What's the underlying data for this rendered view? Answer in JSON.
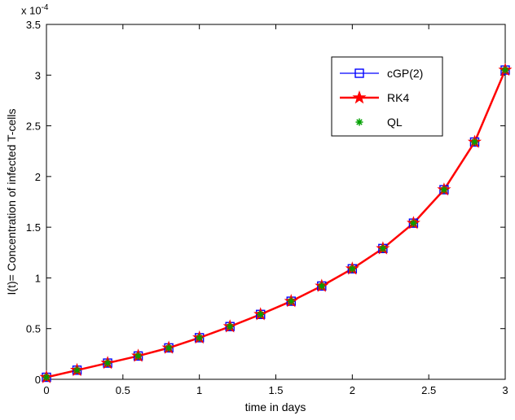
{
  "figure": {
    "background": "#ffffff",
    "y_scale_base": "x 10",
    "y_scale_exp": "-4"
  },
  "chart_data": {
    "type": "line",
    "title": "",
    "xlabel": "time in days",
    "ylabel": "I(t)= Concentration of infected T-cells",
    "y_scale_label": "x 10^-4",
    "xlim": [
      0,
      3
    ],
    "ylim": [
      0,
      3.5
    ],
    "xticks": [
      0,
      0.5,
      1,
      1.5,
      2,
      2.5,
      3
    ],
    "yticks": [
      0,
      0.5,
      1,
      1.5,
      2,
      2.5,
      3,
      3.5
    ],
    "grid": false,
    "legend_position": "upper-right-inside",
    "x": [
      0,
      0.2,
      0.4,
      0.6,
      0.8,
      1,
      1.2,
      1.4,
      1.6,
      1.8,
      2,
      2.2,
      2.4,
      2.6,
      2.8,
      3
    ],
    "series": [
      {
        "name": "cGP(2)",
        "color": "#0000ff",
        "marker": "square-open",
        "line": true,
        "line_width": 1.3,
        "values": [
          0.02,
          0.09,
          0.16,
          0.23,
          0.31,
          0.41,
          0.52,
          0.64,
          0.77,
          0.92,
          1.09,
          1.29,
          1.54,
          1.87,
          2.34,
          3.05
        ]
      },
      {
        "name": "RK4",
        "color": "#ff0000",
        "marker": "pentagram",
        "line": true,
        "line_width": 2.5,
        "values": [
          0.02,
          0.09,
          0.16,
          0.23,
          0.31,
          0.41,
          0.52,
          0.64,
          0.77,
          0.92,
          1.09,
          1.29,
          1.54,
          1.87,
          2.34,
          3.05
        ]
      },
      {
        "name": "QL",
        "color": "#00a000",
        "marker": "asterisk",
        "line": false,
        "values": [
          0.02,
          0.09,
          0.16,
          0.23,
          0.31,
          0.41,
          0.52,
          0.64,
          0.77,
          0.92,
          1.09,
          1.29,
          1.54,
          1.87,
          2.34,
          3.05
        ]
      }
    ]
  }
}
